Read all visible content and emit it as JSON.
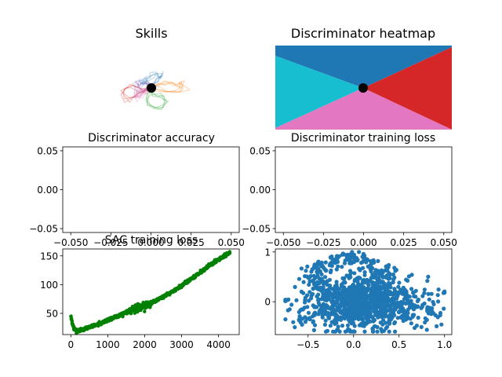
{
  "chart_data": [
    {
      "type": "line",
      "title": "Skills",
      "series": [
        {
          "color": "#1f77b4",
          "values": [
            [
              0,
              0
            ],
            [
              -0.05,
              0.08
            ],
            [
              -0.12,
              0.14
            ],
            [
              -0.18,
              0.1
            ],
            [
              -0.22,
              0.16
            ],
            [
              -0.15,
              0.22
            ],
            [
              -0.05,
              0.18
            ],
            [
              0.05,
              0.25
            ],
            [
              0.1,
              0.3
            ],
            [
              0.18,
              0.22
            ],
            [
              0.22,
              0.28
            ],
            [
              0.15,
              0.18
            ],
            [
              0.05,
              0.12
            ],
            [
              0,
              0.05
            ]
          ]
        },
        {
          "color": "#ff7f0e",
          "values": [
            [
              0,
              0
            ],
            [
              0.12,
              0.02
            ],
            [
              0.25,
              0.08
            ],
            [
              0.4,
              0.12
            ],
            [
              0.52,
              0.05
            ],
            [
              0.62,
              0.1
            ],
            [
              0.7,
              0.02
            ],
            [
              0.58,
              -0.05
            ],
            [
              0.45,
              -0.1
            ],
            [
              0.3,
              -0.05
            ],
            [
              0.15,
              -0.02
            ],
            [
              0,
              0
            ]
          ]
        },
        {
          "color": "#2ca02c",
          "values": [
            [
              0,
              0
            ],
            [
              0.05,
              -0.1
            ],
            [
              0.12,
              -0.18
            ],
            [
              0.22,
              -0.22
            ],
            [
              0.3,
              -0.3
            ],
            [
              0.2,
              -0.38
            ],
            [
              0.08,
              -0.42
            ],
            [
              -0.05,
              -0.35
            ],
            [
              -0.1,
              -0.25
            ],
            [
              -0.05,
              -0.12
            ],
            [
              0,
              0
            ]
          ]
        },
        {
          "color": "#d62728",
          "values": [
            [
              0,
              0
            ],
            [
              -0.12,
              -0.05
            ],
            [
              -0.25,
              -0.02
            ],
            [
              -0.38,
              0.05
            ],
            [
              -0.5,
              -0.02
            ],
            [
              -0.6,
              -0.1
            ],
            [
              -0.52,
              -0.2
            ],
            [
              -0.4,
              -0.18
            ],
            [
              -0.28,
              -0.12
            ],
            [
              -0.15,
              -0.05
            ],
            [
              0,
              0
            ]
          ]
        },
        {
          "color": "#9467bd",
          "values": [
            [
              0,
              0
            ],
            [
              -0.1,
              0.12
            ],
            [
              -0.2,
              0.05
            ],
            [
              -0.3,
              0.12
            ],
            [
              -0.35,
              0.02
            ],
            [
              -0.25,
              -0.05
            ],
            [
              -0.12,
              -0.02
            ],
            [
              0,
              0
            ]
          ]
        },
        {
          "color": "#e377c2",
          "values": [
            [
              0,
              0
            ],
            [
              -0.15,
              -0.12
            ],
            [
              -0.28,
              -0.2
            ],
            [
              -0.35,
              -0.1
            ],
            [
              -0.2,
              -0.05
            ],
            [
              0,
              0
            ]
          ]
        }
      ],
      "marker": {
        "x": 0,
        "y": 0,
        "color": "#000000"
      }
    },
    {
      "type": "heatmap",
      "title": "Discriminator heatmap",
      "regions": [
        {
          "name": "top",
          "color": "#1f77b4"
        },
        {
          "name": "left",
          "color": "#17becf"
        },
        {
          "name": "right",
          "color": "#d62728"
        },
        {
          "name": "bottom",
          "color": "#e377c2"
        }
      ],
      "marker": {
        "x": 0,
        "y": 0,
        "color": "#000000"
      }
    },
    {
      "type": "line",
      "title": "Discriminator accuracy",
      "xlim": [
        -0.055,
        0.055
      ],
      "ylim": [
        -0.055,
        0.055
      ],
      "xticks": [
        "−0.050",
        "−0.025",
        "0.000",
        "0.025",
        "0.050"
      ],
      "yticks": [
        "0.05",
        "0.00",
        "−0.05"
      ],
      "series": []
    },
    {
      "type": "line",
      "title": "Discriminator training loss",
      "xlim": [
        -0.055,
        0.055
      ],
      "ylim": [
        -0.055,
        0.055
      ],
      "xticks": [
        "−0.050",
        "−0.025",
        "0.000",
        "0.025",
        "0.050"
      ],
      "yticks": [
        "0.05",
        "0.00",
        "−0.05"
      ],
      "series": []
    },
    {
      "type": "scatter",
      "title": "SAC training loss",
      "xlim": [
        -220,
        4560
      ],
      "ylim": [
        13,
        162
      ],
      "xticks": [
        "0",
        "1000",
        "2000",
        "3000",
        "4000"
      ],
      "yticks": [
        "150",
        "100",
        "50"
      ],
      "color": "#008000",
      "n_points": 4350,
      "values": [
        [
          0,
          45
        ],
        [
          20,
          38
        ],
        [
          40,
          32
        ],
        [
          80,
          24
        ],
        [
          120,
          21
        ],
        [
          200,
          20
        ],
        [
          300,
          22
        ],
        [
          400,
          24
        ],
        [
          500,
          26
        ],
        [
          700,
          30
        ],
        [
          900,
          35
        ],
        [
          1100,
          41
        ],
        [
          1300,
          46
        ],
        [
          1500,
          52
        ],
        [
          1700,
          57
        ],
        [
          1900,
          61
        ],
        [
          2100,
          66
        ],
        [
          2300,
          72
        ],
        [
          2500,
          79
        ],
        [
          2700,
          86
        ],
        [
          2900,
          94
        ],
        [
          3100,
          103
        ],
        [
          3300,
          112
        ],
        [
          3500,
          121
        ],
        [
          3700,
          131
        ],
        [
          3900,
          140
        ],
        [
          4100,
          148
        ],
        [
          4300,
          155
        ]
      ]
    },
    {
      "type": "scatter",
      "title": "",
      "xlim": [
        -0.86,
        1.08
      ],
      "ylim": [
        -0.66,
        1.06
      ],
      "xticks": [
        "−0.5",
        "0.0",
        "0.5",
        "1.0"
      ],
      "yticks": [
        "1",
        "0"
      ],
      "color": "#1f77b4",
      "n_points": 1200,
      "x_range": [
        -0.75,
        1.0
      ],
      "y_range": [
        -0.6,
        1.0
      ]
    }
  ]
}
